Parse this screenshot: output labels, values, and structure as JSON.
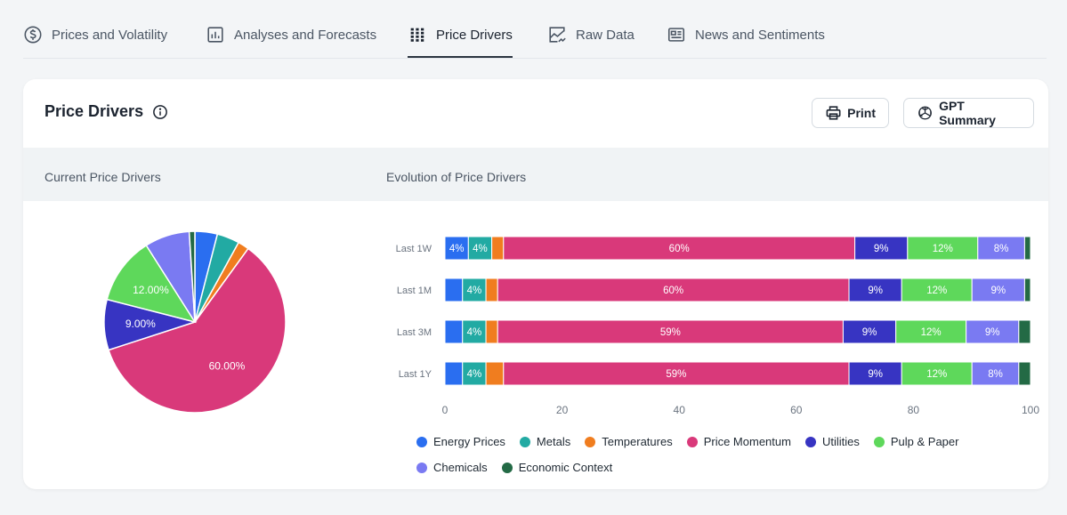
{
  "tabs": [
    {
      "label": "Prices and Volatility",
      "icon": "dollar-circle-icon"
    },
    {
      "label": "Analyses and Forecasts",
      "icon": "bar-chart-icon"
    },
    {
      "label": "Price Drivers",
      "icon": "grid-bars-icon"
    },
    {
      "label": "Raw Data",
      "icon": "trend-chart-icon"
    },
    {
      "label": "News and Sentiments",
      "icon": "newspaper-icon"
    }
  ],
  "active_tab": "Price Drivers",
  "card": {
    "title": "Price Drivers",
    "print_label": "Print",
    "gpt_label": "GPT Summary",
    "current_heading": "Current Price Drivers",
    "evolution_heading": "Evolution of Price Drivers"
  },
  "colors": {
    "Energy Prices": "#2a6ef0",
    "Metals": "#22aaa3",
    "Temperatures": "#f07d1f",
    "Price Momentum": "#d9397a",
    "Utilities": "#3734c2",
    "Pulp & Paper": "#5ed85b",
    "Chemicals": "#7a7af2",
    "Economic Context": "#236a45"
  },
  "chart_data": [
    {
      "type": "pie",
      "title": "Current Price Drivers",
      "labels": [
        "Energy Prices",
        "Metals",
        "Temperatures",
        "Price Momentum",
        "Utilities",
        "Pulp & Paper",
        "Chemicals",
        "Economic Context"
      ],
      "values": [
        4,
        4,
        2,
        60,
        9,
        12,
        8,
        1
      ],
      "data_labels": [
        "",
        "",
        "",
        "60.00%",
        "9.00%",
        "12.00%",
        "",
        ""
      ]
    },
    {
      "type": "bar",
      "orientation": "horizontal",
      "stacked": true,
      "title": "Evolution of Price Drivers",
      "categories": [
        "Last 1W",
        "Last 1M",
        "Last 3M",
        "Last 1Y"
      ],
      "xlim": [
        0,
        100
      ],
      "xticks": [
        0,
        20,
        40,
        60,
        80,
        100
      ],
      "series": [
        {
          "name": "Energy Prices",
          "values": [
            4,
            3,
            3,
            3
          ],
          "labels": [
            "4%",
            "",
            "",
            ""
          ]
        },
        {
          "name": "Metals",
          "values": [
            4,
            4,
            4,
            4
          ],
          "labels": [
            "4%",
            "4%",
            "4%",
            "4%"
          ]
        },
        {
          "name": "Temperatures",
          "values": [
            2,
            2,
            2,
            3
          ],
          "labels": [
            "",
            "",
            "",
            ""
          ]
        },
        {
          "name": "Price Momentum",
          "values": [
            60,
            60,
            59,
            59
          ],
          "labels": [
            "60%",
            "60%",
            "59%",
            "59%"
          ]
        },
        {
          "name": "Utilities",
          "values": [
            9,
            9,
            9,
            9
          ],
          "labels": [
            "9%",
            "9%",
            "9%",
            "9%"
          ]
        },
        {
          "name": "Pulp & Paper",
          "values": [
            12,
            12,
            12,
            12
          ],
          "labels": [
            "12%",
            "12%",
            "12%",
            "12%"
          ]
        },
        {
          "name": "Chemicals",
          "values": [
            8,
            9,
            9,
            8
          ],
          "labels": [
            "8%",
            "9%",
            "9%",
            "8%"
          ]
        },
        {
          "name": "Economic Context",
          "values": [
            1,
            1,
            2,
            2
          ],
          "labels": [
            "",
            "",
            "",
            ""
          ]
        }
      ],
      "legend": [
        "Energy Prices",
        "Metals",
        "Temperatures",
        "Price Momentum",
        "Utilities",
        "Pulp & Paper",
        "Chemicals",
        "Economic Context"
      ]
    }
  ]
}
